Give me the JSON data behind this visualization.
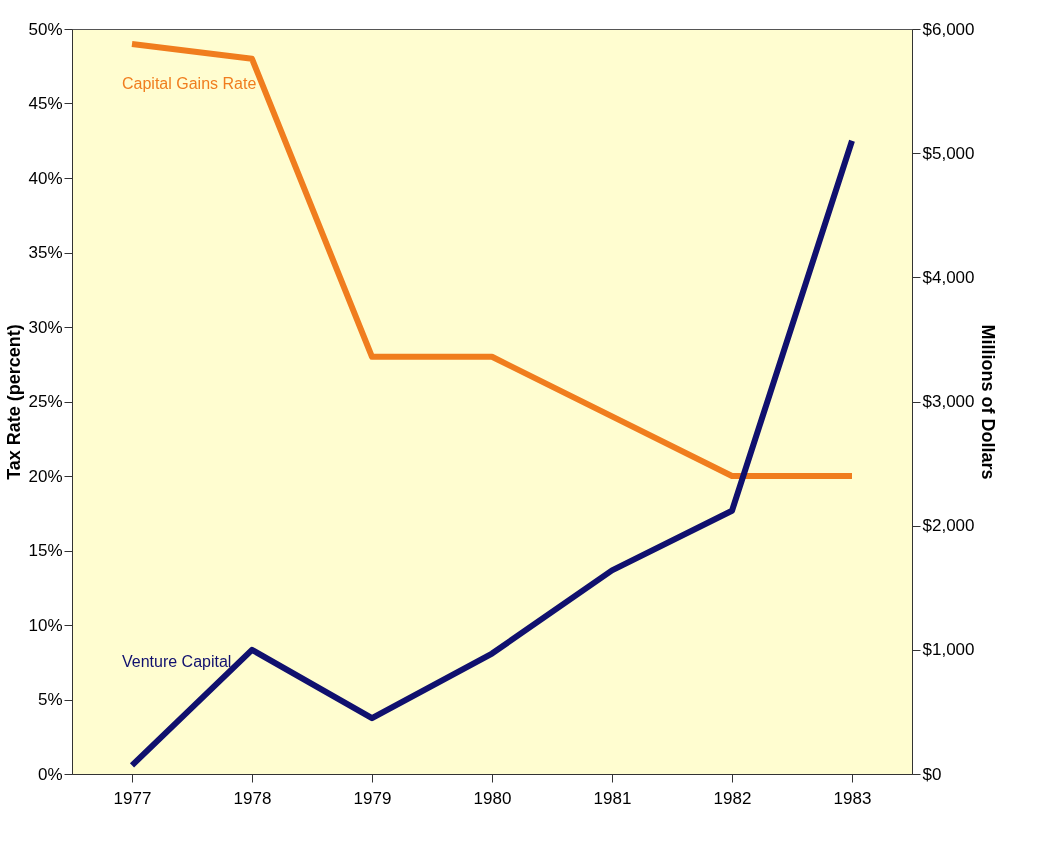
{
  "chart_data": {
    "type": "line",
    "categories": [
      "1977",
      "1978",
      "1979",
      "1980",
      "1981",
      "1982",
      "1983"
    ],
    "series": [
      {
        "name": "Capital Gains Rate",
        "color": "#f07d1e",
        "values": [
          49,
          48,
          28,
          28,
          24,
          20,
          20
        ]
      },
      {
        "name": "Venture Capital",
        "color": "#10106e",
        "axis": "y2",
        "values": [
          70,
          1000,
          450,
          970,
          1640,
          2120,
          5100
        ]
      }
    ],
    "ylabel": "Tax Rate (percent)",
    "y2label": "Millions of Dollars",
    "ylim": [
      0,
      50
    ],
    "yticks": [
      {
        "value": 0,
        "label": "0%"
      },
      {
        "value": 5,
        "label": "5%"
      },
      {
        "value": 10,
        "label": "10%"
      },
      {
        "value": 15,
        "label": "15%"
      },
      {
        "value": 20,
        "label": "20%"
      },
      {
        "value": 25,
        "label": "25%"
      },
      {
        "value": 30,
        "label": "30%"
      },
      {
        "value": 35,
        "label": "35%"
      },
      {
        "value": 40,
        "label": "40%"
      },
      {
        "value": 45,
        "label": "45%"
      },
      {
        "value": 50,
        "label": "50%"
      }
    ],
    "y2lim": [
      0,
      6000
    ],
    "y2ticks": [
      {
        "value": 0,
        "label": "$0"
      },
      {
        "value": 1000,
        "label": "$1,000"
      },
      {
        "value": 2000,
        "label": "$2,000"
      },
      {
        "value": 3000,
        "label": "$3,000"
      },
      {
        "value": 4000,
        "label": "$4,000"
      },
      {
        "value": 5000,
        "label": "$5,000"
      },
      {
        "value": 6000,
        "label": "$6,000"
      }
    ],
    "grid": false,
    "marker": "none",
    "line_style": "solid"
  }
}
